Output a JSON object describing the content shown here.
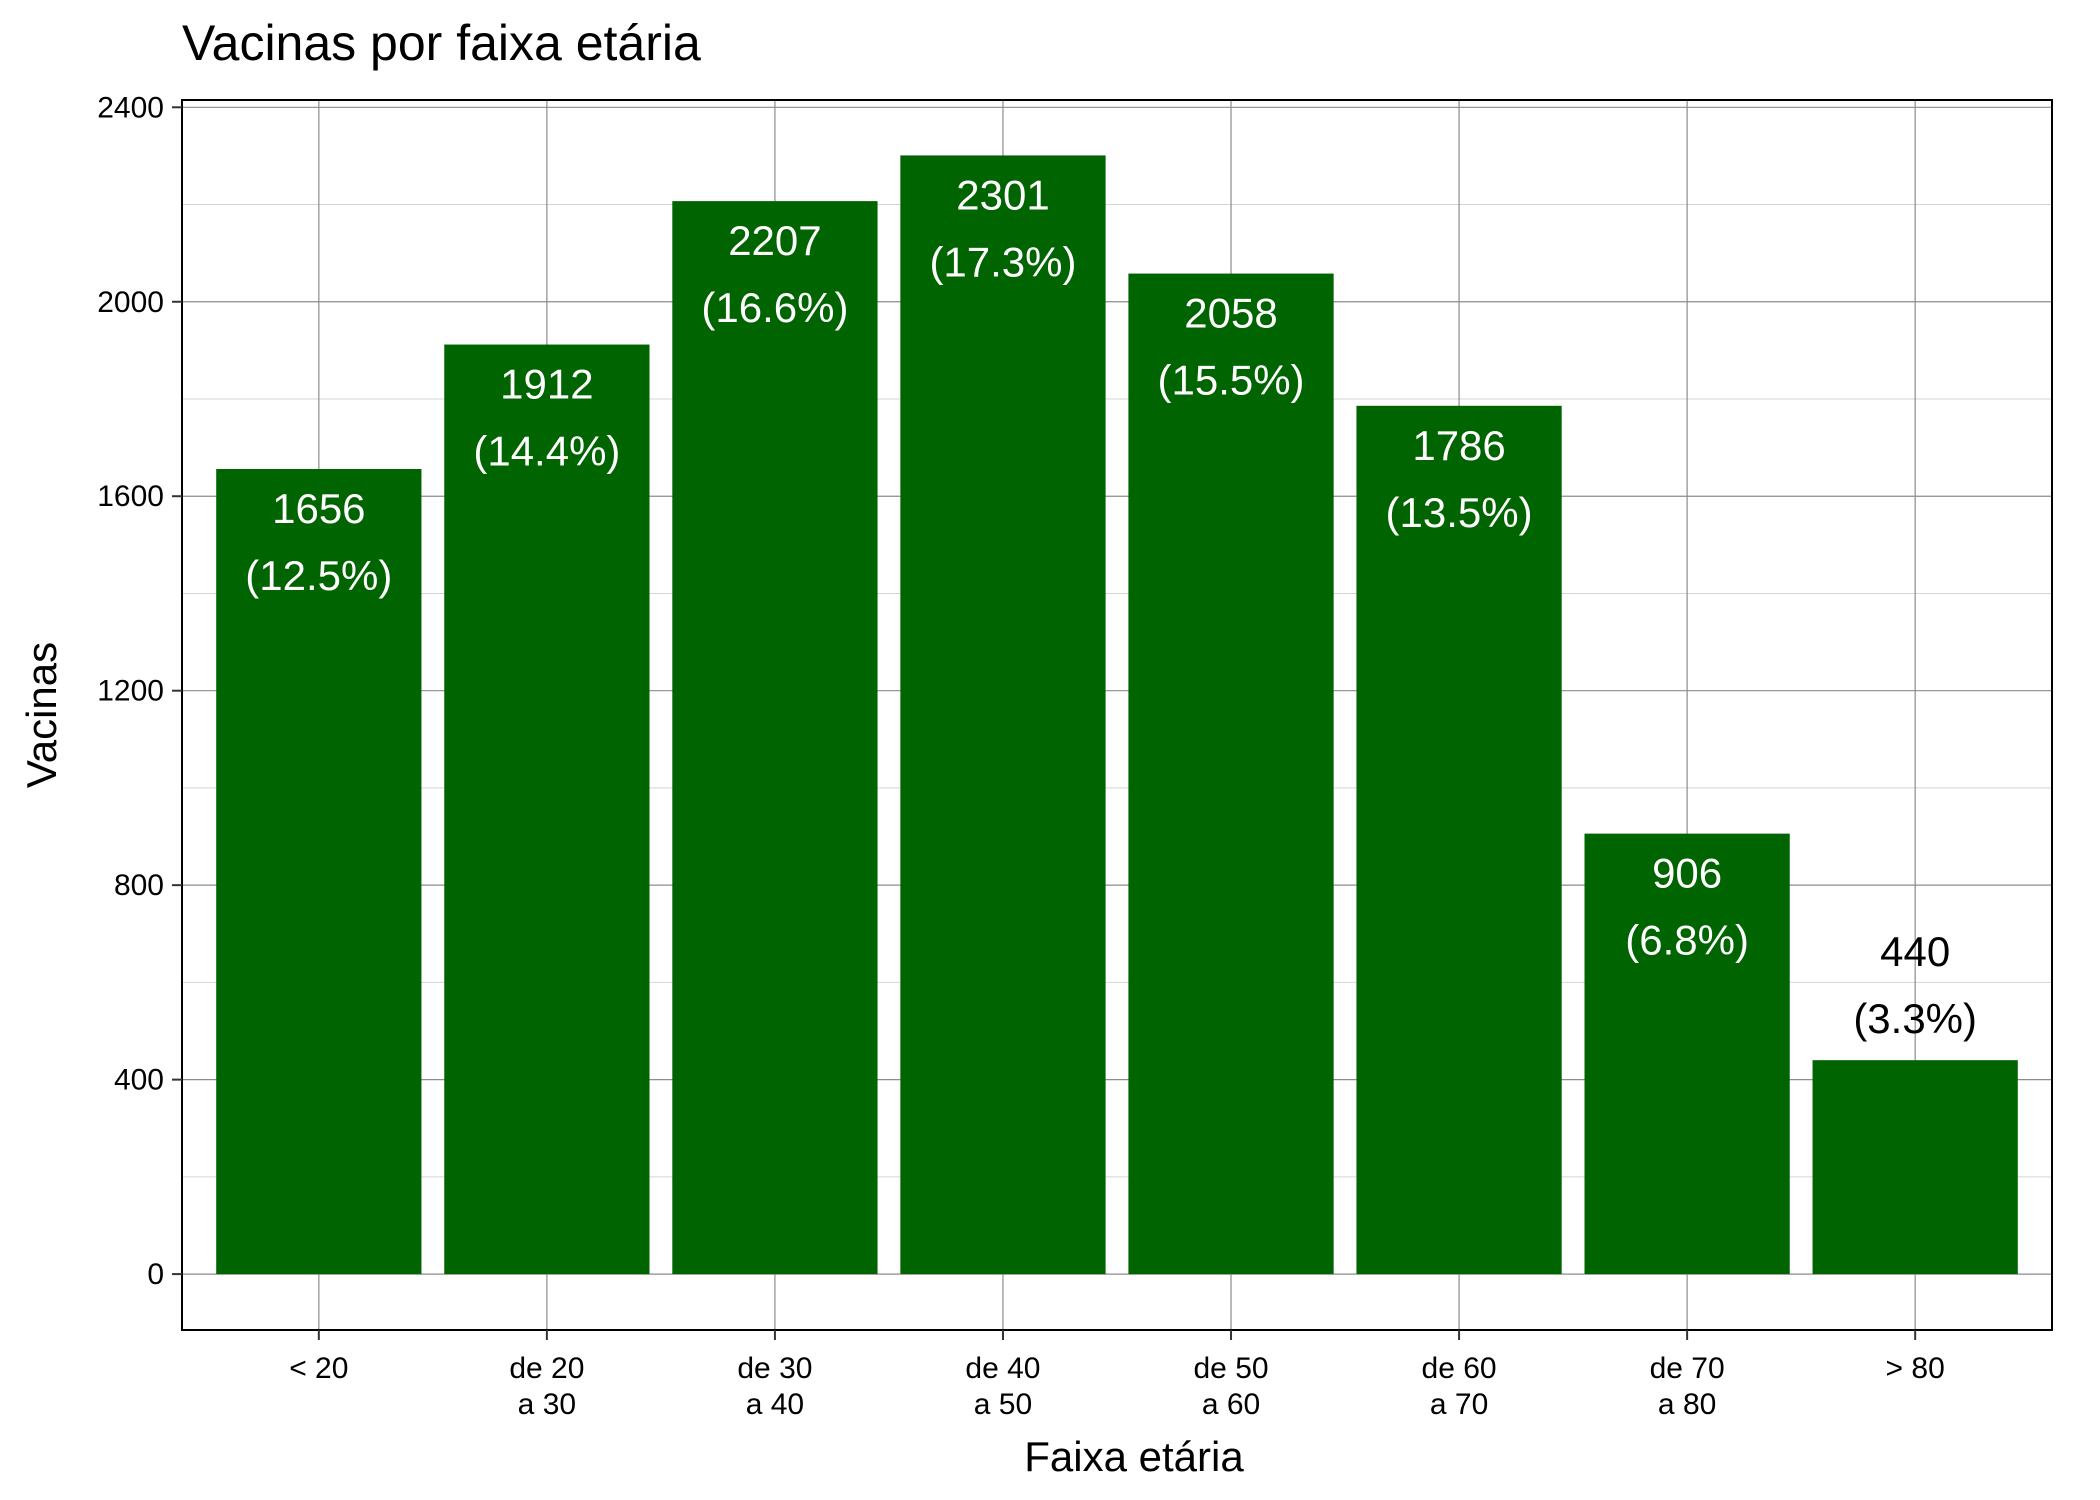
{
  "chart_data": {
    "type": "bar",
    "title": "Vacinas por faixa etária",
    "xlabel": "Faixa etária",
    "ylabel": "Vacinas",
    "categories": [
      [
        "< 20"
      ],
      [
        "de 20",
        "a 30"
      ],
      [
        "de 30",
        "a 40"
      ],
      [
        "de 40",
        "a 50"
      ],
      [
        "de 50",
        "a 60"
      ],
      [
        "de 60",
        "a 70"
      ],
      [
        "de 70",
        "a 80"
      ],
      [
        "> 80"
      ]
    ],
    "values": [
      1656,
      1912,
      2207,
      2301,
      2058,
      1786,
      906,
      440
    ],
    "percent_labels": [
      "(12.5%)",
      "(14.4%)",
      "(16.6%)",
      "(17.3%)",
      "(15.5%)",
      "(13.5%)",
      "(6.8%)",
      "(3.3%)"
    ],
    "ylim": [
      -115,
      2415
    ],
    "yticks": [
      0,
      400,
      800,
      1200,
      1600,
      2000,
      2400
    ],
    "grid": true,
    "bar_color": "#006400",
    "inside_label_color": "#ffffff",
    "outside_label_color": "#000000"
  }
}
